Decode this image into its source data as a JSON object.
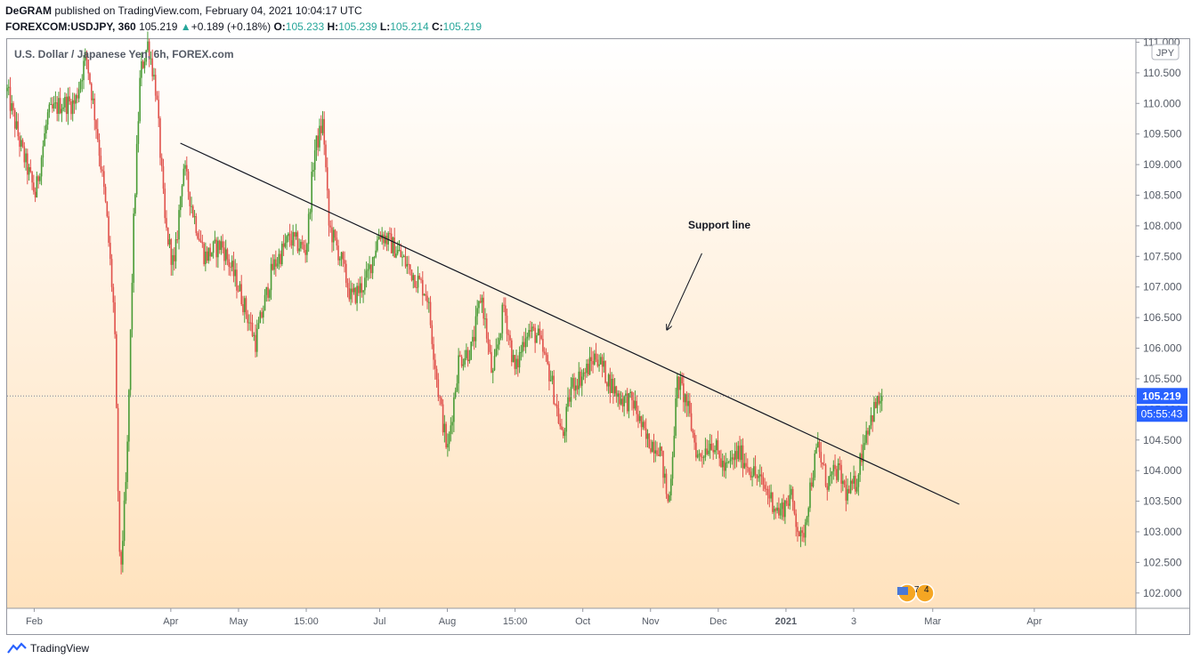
{
  "header": {
    "publisher": "DeGRAM",
    "published_text": " published on TradingView.com, February 04, 2021 10:04:17 UTC",
    "symbol": "FOREXCOM:USDJPY, 360",
    "last": "105.219",
    "change": "+0.189 (+0.18%)",
    "o_label": "O:",
    "o": "105.233",
    "h_label": "H:",
    "h": "105.239",
    "l_label": "L:",
    "l": "105.214",
    "c_label": "C:",
    "c": "105.219"
  },
  "colors": {
    "up": "#26a69a",
    "down": "#ef5350",
    "candle_up": "#4a9c37",
    "candle_down": "#e0524c",
    "price_badge": "#2962ff",
    "bg_top": "#ffffff",
    "bg_bottom": "#ffe2bd"
  },
  "chart_data": {
    "type": "candlestick",
    "title": "U.S. Dollar / Japanese Yen, 6h, FOREX.com",
    "currency_label": "JPY",
    "current_price_label": "105.219",
    "countdown_label": "05:55:43",
    "ylim": [
      101.75,
      111.05
    ],
    "y_ticks": [
      "111.000",
      "110.500",
      "110.000",
      "109.500",
      "109.000",
      "108.500",
      "108.000",
      "107.500",
      "107.000",
      "106.500",
      "106.000",
      "105.500",
      "105.000",
      "104.500",
      "104.000",
      "103.500",
      "103.000",
      "102.500",
      "102.000"
    ],
    "x_ticks": [
      "Feb",
      "Apr",
      "May",
      "15:00",
      "Jul",
      "Aug",
      "15:00",
      "Oct",
      "Nov",
      "Dec",
      "2021",
      "3",
      "Mar",
      "Apr"
    ],
    "x_tick_fraction": [
      0.024,
      0.145,
      0.205,
      0.265,
      0.33,
      0.39,
      0.45,
      0.51,
      0.57,
      0.63,
      0.69,
      0.75,
      0.82,
      0.91
    ],
    "price_path": [
      {
        "t": 0.0,
        "p": 110.2
      },
      {
        "t": 0.012,
        "p": 109.3
      },
      {
        "t": 0.025,
        "p": 108.5
      },
      {
        "t": 0.036,
        "p": 109.8
      },
      {
        "t": 0.048,
        "p": 110.0
      },
      {
        "t": 0.06,
        "p": 110.0
      },
      {
        "t": 0.07,
        "p": 110.8
      },
      {
        "t": 0.08,
        "p": 109.5
      },
      {
        "t": 0.088,
        "p": 108.2
      },
      {
        "t": 0.095,
        "p": 106.5
      },
      {
        "t": 0.1,
        "p": 102.2
      },
      {
        "t": 0.106,
        "p": 104.0
      },
      {
        "t": 0.112,
        "p": 108.0
      },
      {
        "t": 0.118,
        "p": 110.5
      },
      {
        "t": 0.125,
        "p": 111.0
      },
      {
        "t": 0.132,
        "p": 110.2
      },
      {
        "t": 0.14,
        "p": 108.0
      },
      {
        "t": 0.148,
        "p": 107.3
      },
      {
        "t": 0.156,
        "p": 109.0
      },
      {
        "t": 0.165,
        "p": 108.2
      },
      {
        "t": 0.175,
        "p": 107.5
      },
      {
        "t": 0.19,
        "p": 107.7
      },
      {
        "t": 0.205,
        "p": 107.0
      },
      {
        "t": 0.22,
        "p": 106.1
      },
      {
        "t": 0.235,
        "p": 107.3
      },
      {
        "t": 0.25,
        "p": 107.8
      },
      {
        "t": 0.265,
        "p": 107.6
      },
      {
        "t": 0.272,
        "p": 109.2
      },
      {
        "t": 0.28,
        "p": 109.7
      },
      {
        "t": 0.285,
        "p": 108.0
      },
      {
        "t": 0.295,
        "p": 107.5
      },
      {
        "t": 0.305,
        "p": 106.8
      },
      {
        "t": 0.318,
        "p": 107.1
      },
      {
        "t": 0.33,
        "p": 107.9
      },
      {
        "t": 0.345,
        "p": 107.6
      },
      {
        "t": 0.36,
        "p": 107.2
      },
      {
        "t": 0.372,
        "p": 106.9
      },
      {
        "t": 0.382,
        "p": 105.3
      },
      {
        "t": 0.39,
        "p": 104.3
      },
      {
        "t": 0.4,
        "p": 105.8
      },
      {
        "t": 0.412,
        "p": 106.0
      },
      {
        "t": 0.42,
        "p": 106.9
      },
      {
        "t": 0.43,
        "p": 105.5
      },
      {
        "t": 0.44,
        "p": 106.7
      },
      {
        "t": 0.45,
        "p": 105.6
      },
      {
        "t": 0.46,
        "p": 106.3
      },
      {
        "t": 0.47,
        "p": 106.2
      },
      {
        "t": 0.482,
        "p": 105.5
      },
      {
        "t": 0.492,
        "p": 104.5
      },
      {
        "t": 0.5,
        "p": 105.4
      },
      {
        "t": 0.512,
        "p": 105.6
      },
      {
        "t": 0.522,
        "p": 105.9
      },
      {
        "t": 0.532,
        "p": 105.5
      },
      {
        "t": 0.542,
        "p": 105.2
      },
      {
        "t": 0.555,
        "p": 105.1
      },
      {
        "t": 0.566,
        "p": 104.5
      },
      {
        "t": 0.578,
        "p": 104.4
      },
      {
        "t": 0.586,
        "p": 103.4
      },
      {
        "t": 0.594,
        "p": 105.5
      },
      {
        "t": 0.602,
        "p": 105.1
      },
      {
        "t": 0.612,
        "p": 104.2
      },
      {
        "t": 0.624,
        "p": 104.5
      },
      {
        "t": 0.636,
        "p": 104.0
      },
      {
        "t": 0.648,
        "p": 104.3
      },
      {
        "t": 0.66,
        "p": 104.0
      },
      {
        "t": 0.672,
        "p": 103.7
      },
      {
        "t": 0.684,
        "p": 103.3
      },
      {
        "t": 0.694,
        "p": 103.6
      },
      {
        "t": 0.704,
        "p": 102.8
      },
      {
        "t": 0.712,
        "p": 103.8
      },
      {
        "t": 0.718,
        "p": 104.4
      },
      {
        "t": 0.726,
        "p": 103.8
      },
      {
        "t": 0.736,
        "p": 104.0
      },
      {
        "t": 0.744,
        "p": 103.6
      },
      {
        "t": 0.752,
        "p": 103.8
      },
      {
        "t": 0.76,
        "p": 104.6
      },
      {
        "t": 0.768,
        "p": 105.0
      },
      {
        "t": 0.775,
        "p": 105.22
      }
    ],
    "annotations": [
      {
        "type": "trendline",
        "label": "Support line",
        "start": {
          "t": 0.1535,
          "p": 109.35
        },
        "end": {
          "t": 0.8435,
          "p": 103.45
        }
      },
      {
        "type": "arrow",
        "start": {
          "t": 0.6155,
          "p": 107.55
        },
        "end": {
          "t": 0.5845,
          "p": 106.3
        }
      }
    ],
    "support_label": "Support line",
    "event_badge_1": "7",
    "event_badge_2": "4"
  },
  "footer": {
    "brand": "TradingView"
  }
}
